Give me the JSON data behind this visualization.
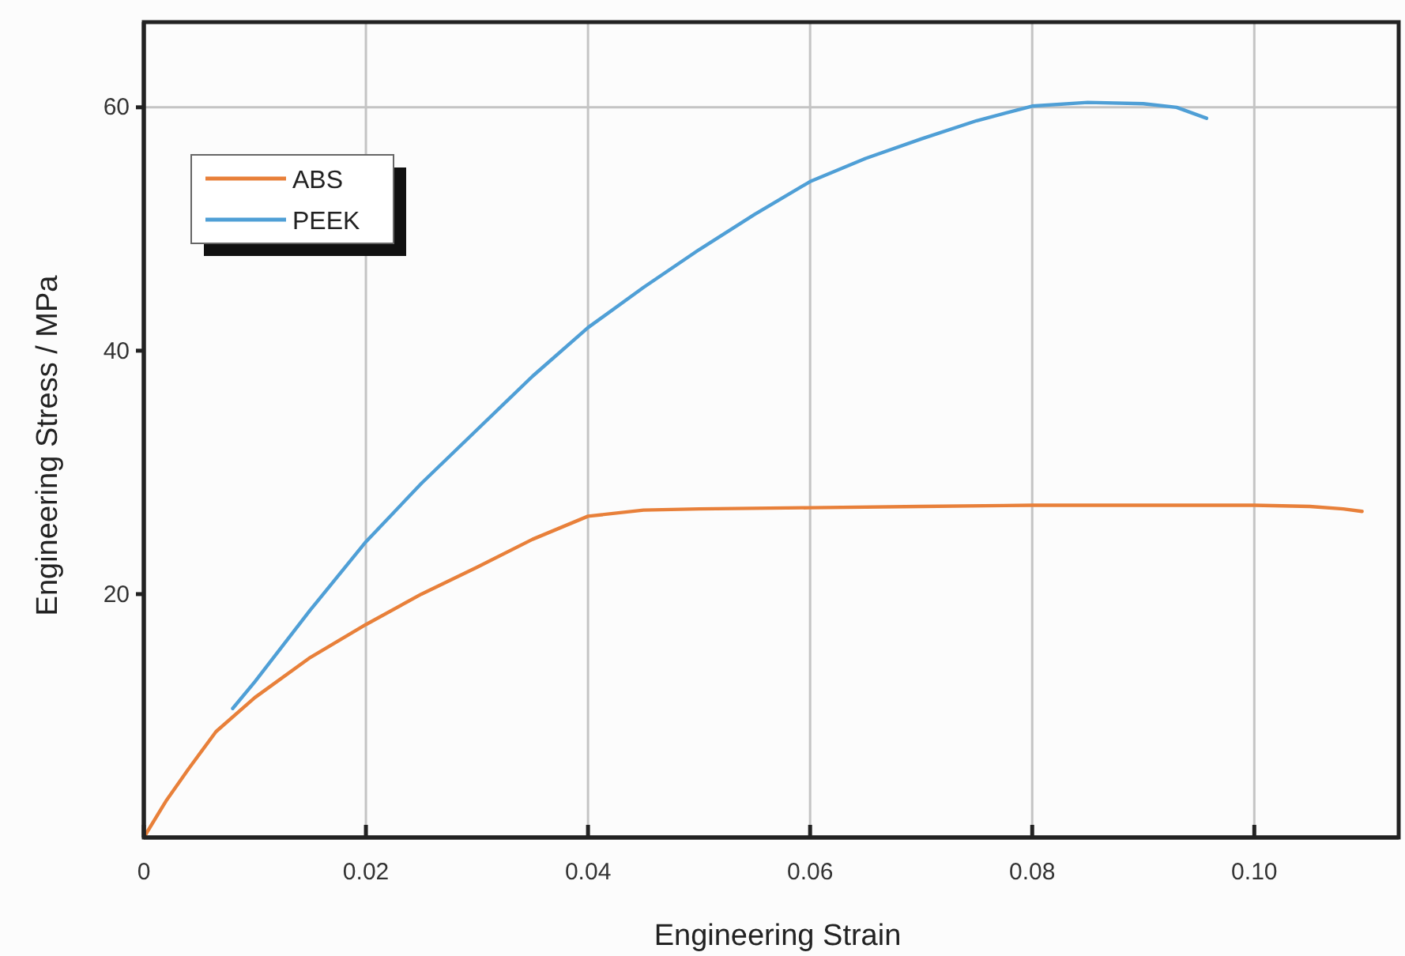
{
  "chart_data": {
    "type": "line",
    "xlabel": "Engineering Strain",
    "ylabel": "Engineering Stress / MPa",
    "xlim": [
      0,
      0.113
    ],
    "ylim": [
      0,
      67
    ],
    "xticks": [
      0,
      0.02,
      0.04,
      0.06,
      0.08,
      {
        "value": 0.1,
        "label": "0.10"
      }
    ],
    "yticks": [
      20,
      40,
      60
    ],
    "grid": "x",
    "legend": "top left",
    "ref_lines": [
      {
        "axis": "y",
        "value": 60,
        "color": "#c4c4c4"
      }
    ],
    "series": [
      {
        "name": "ABS",
        "color": "#e8803a",
        "x": [
          0,
          0.002,
          0.004,
          0.0065,
          0.01,
          0.015,
          0.02,
          0.025,
          0.03,
          0.035,
          0.04,
          0.045,
          0.05,
          0.06,
          0.07,
          0.08,
          0.09,
          0.1,
          0.105,
          0.108,
          0.1097
        ],
        "values": [
          0,
          3.0,
          5.6,
          8.7,
          11.5,
          14.8,
          17.5,
          20.0,
          22.2,
          24.5,
          26.4,
          26.9,
          27.0,
          27.1,
          27.2,
          27.3,
          27.3,
          27.3,
          27.2,
          27.0,
          26.8
        ]
      },
      {
        "name": "PEEK",
        "color": "#4f9fd6",
        "x": [
          0.008,
          0.01,
          0.015,
          0.02,
          0.025,
          0.03,
          0.035,
          0.04,
          0.045,
          0.05,
          0.055,
          0.06,
          0.065,
          0.07,
          0.075,
          0.08,
          0.085,
          0.09,
          0.093,
          0.0957
        ],
        "values": [
          10.6,
          12.8,
          18.7,
          24.3,
          29.1,
          33.5,
          37.9,
          41.9,
          45.2,
          48.3,
          51.2,
          53.9,
          55.8,
          57.4,
          58.9,
          60.1,
          60.4,
          60.3,
          60.0,
          59.1
        ]
      }
    ]
  }
}
